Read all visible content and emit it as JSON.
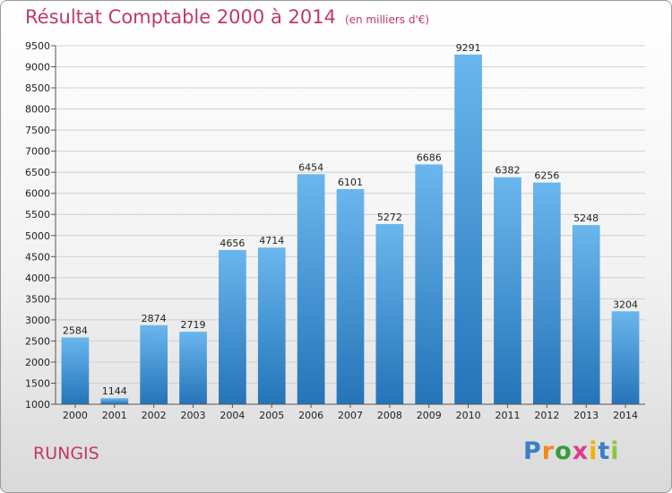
{
  "title": "Résultat Comptable 2000 à 2014",
  "subtitle": "(en milliers d'€)",
  "commune": "RUNGIS",
  "logo": [
    "P",
    "r",
    "o",
    "x",
    "i",
    "t",
    "i"
  ],
  "colors": {
    "title": "#c0396a",
    "bar_top": "#6ab6ee",
    "bar_bottom": "#2474b8",
    "logo": [
      "#3a7fc4",
      "#f08a1c",
      "#3a9a3a",
      "#e03c8c",
      "#f0b400",
      "#3a7fc4",
      "#8cc63f"
    ]
  },
  "chart_data": {
    "type": "bar",
    "categories": [
      "2000",
      "2001",
      "2002",
      "2003",
      "2004",
      "2005",
      "2006",
      "2007",
      "2008",
      "2009",
      "2010",
      "2011",
      "2012",
      "2013",
      "2014"
    ],
    "values": [
      2584,
      1144,
      2874,
      2719,
      4656,
      4714,
      6454,
      6101,
      5272,
      6686,
      9291,
      6382,
      6256,
      5248,
      3204
    ],
    "ylim": [
      1000,
      9500
    ],
    "yticks": [
      1000,
      1500,
      2000,
      2500,
      3000,
      3500,
      4000,
      4500,
      5000,
      5500,
      6000,
      6500,
      7000,
      7500,
      8000,
      8500,
      9000,
      9500
    ],
    "grid": true,
    "legend": "none"
  }
}
